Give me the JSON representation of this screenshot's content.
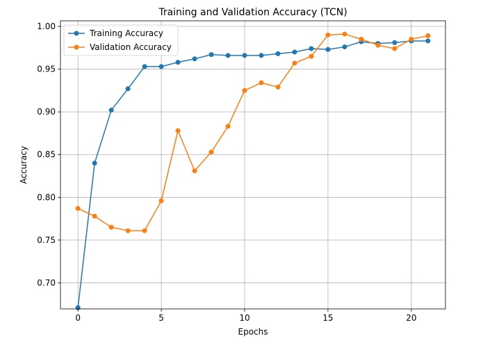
{
  "chart_data": {
    "type": "line",
    "title": "Training and Validation Accuracy (TCN)",
    "xlabel": "Epochs",
    "ylabel": "Accuracy",
    "xlim": [
      -1.05,
      22.05
    ],
    "ylim": [
      0.6695,
      1.0065
    ],
    "xticks": [
      0,
      5,
      10,
      15,
      20
    ],
    "yticks": [
      0.7,
      0.75,
      0.8,
      0.85,
      0.9,
      0.95,
      1.0
    ],
    "ytick_labels": [
      "0.70",
      "0.75",
      "0.80",
      "0.85",
      "0.90",
      "0.95",
      "1.00"
    ],
    "grid": true,
    "legend_position": "upper-left",
    "x": [
      0,
      1,
      2,
      3,
      4,
      5,
      6,
      7,
      8,
      9,
      10,
      11,
      12,
      13,
      14,
      15,
      16,
      17,
      18,
      19,
      20,
      21
    ],
    "series": [
      {
        "name": "Training Accuracy",
        "color": "#1f77b4",
        "values": [
          0.671,
          0.84,
          0.902,
          0.927,
          0.953,
          0.953,
          0.958,
          0.962,
          0.967,
          0.966,
          0.966,
          0.966,
          0.968,
          0.97,
          0.974,
          0.973,
          0.976,
          0.982,
          0.98,
          0.981,
          0.983,
          0.983
        ]
      },
      {
        "name": "Validation Accuracy",
        "color": "#ff7f0e",
        "values": [
          0.787,
          0.778,
          0.765,
          0.761,
          0.761,
          0.796,
          0.878,
          0.831,
          0.853,
          0.883,
          0.925,
          0.934,
          0.929,
          0.957,
          0.965,
          0.99,
          0.991,
          0.985,
          0.978,
          0.974,
          0.985,
          0.989
        ]
      }
    ]
  }
}
